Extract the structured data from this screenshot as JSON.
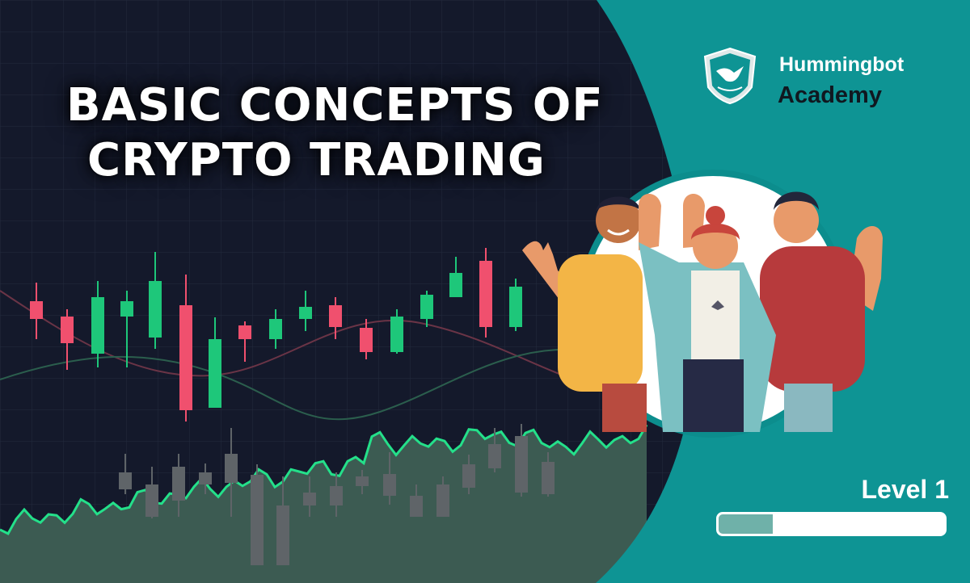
{
  "title": {
    "line1": "BASIC CONCEPTS OF",
    "line2": "CRYPTO TRADING"
  },
  "brand": {
    "name": "Hummingbot",
    "subtitle": "Academy",
    "logo_icon": "hummingbird-shield-icon"
  },
  "level": {
    "label": "Level 1",
    "progress": 0.24
  },
  "colors": {
    "background_dark": "#14192b",
    "teal": "#0e9494",
    "candle_up": "#1ec77a",
    "candle_down": "#f0506e",
    "area_fill": "#3c5b52",
    "area_line": "#24e08a"
  },
  "illustration": {
    "subject": "people-waving-icon"
  }
}
